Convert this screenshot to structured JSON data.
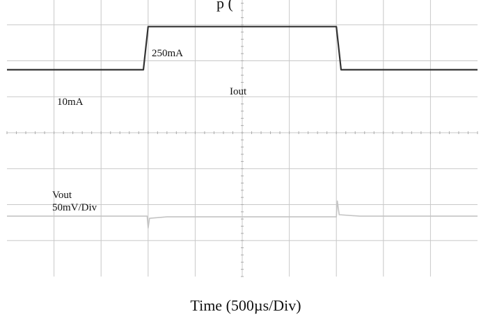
{
  "chart_data": {
    "type": "line",
    "title_fragment": "p (",
    "xlabel": "Time (500µs/Div)",
    "ylabel": "",
    "grid": true,
    "x_divisions": 10,
    "y_divisions": 8,
    "x_scale": "500µs/Div",
    "annotations": {
      "low_current": "10mA",
      "high_current": "250mA",
      "current_trace": "Iout",
      "voltage_trace": "Vout",
      "voltage_scale": "50mV/Div"
    },
    "series": [
      {
        "name": "Iout",
        "x": [
          0,
          2.9,
          3.0,
          7.0,
          7.1,
          10
        ],
        "y": [
          5.75,
          5.75,
          6.95,
          6.95,
          5.75,
          5.75
        ]
      },
      {
        "name": "Vout",
        "x": [
          0,
          2.98,
          3.0,
          3.03,
          3.4,
          7.0,
          7.02,
          7.06,
          7.5,
          10
        ],
        "y": [
          1.68,
          1.68,
          1.35,
          1.62,
          1.66,
          1.66,
          2.1,
          1.72,
          1.68,
          1.68
        ]
      }
    ],
    "colors": {
      "iout": "#333333",
      "vout": "#c4c4c4",
      "grid": "#c8c8c8"
    }
  }
}
